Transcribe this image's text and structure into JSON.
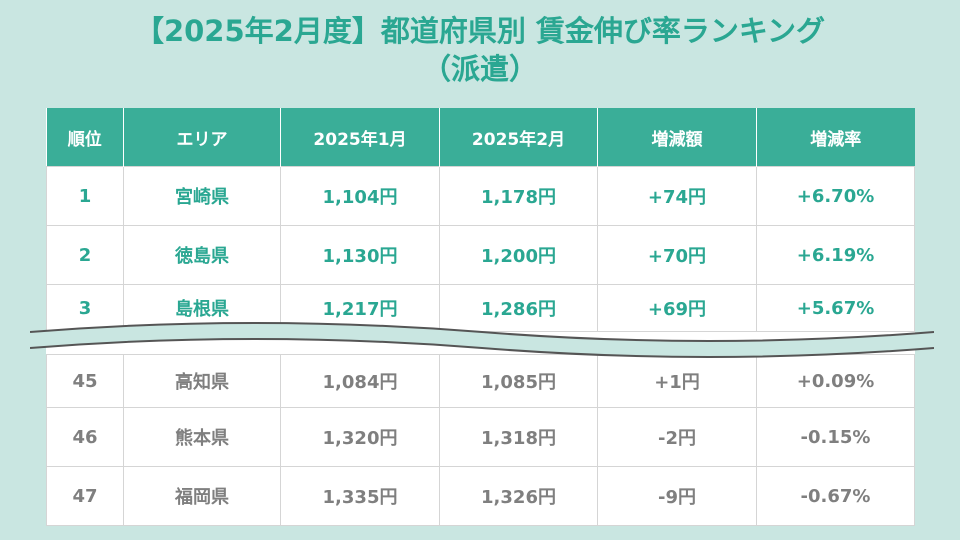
{
  "title": {
    "line1": "【2025年2月度】都道府県別 賃金伸び率ランキング",
    "line2": "（派遣）"
  },
  "table": {
    "headers": [
      "順位",
      "エリア",
      "2025年1月",
      "2025年2月",
      "増減額",
      "増減率"
    ],
    "top_rows": [
      {
        "rank": "1",
        "area": "宮崎県",
        "jan": "1,104円",
        "feb": "1,178円",
        "diff": "+74円",
        "rate": "+6.70%"
      },
      {
        "rank": "2",
        "area": "徳島県",
        "jan": "1,130円",
        "feb": "1,200円",
        "diff": "+70円",
        "rate": "+6.19%"
      },
      {
        "rank": "3",
        "area": "島根県",
        "jan": "1,217円",
        "feb": "1,286円",
        "diff": "+69円",
        "rate": "+5.67%"
      }
    ],
    "bottom_rows": [
      {
        "rank": "45",
        "area": "高知県",
        "jan": "1,084円",
        "feb": "1,085円",
        "diff": "+1円",
        "rate": "+0.09%"
      },
      {
        "rank": "46",
        "area": "熊本県",
        "jan": "1,320円",
        "feb": "1,318円",
        "diff": "-2円",
        "rate": "-0.15%"
      },
      {
        "rank": "47",
        "area": "福岡県",
        "jan": "1,335円",
        "feb": "1,326円",
        "diff": "-9円",
        "rate": "-0.67%"
      }
    ]
  },
  "colors": {
    "background": "#c9e6e1",
    "header_bg": "#3aae98",
    "accent_text": "#2aa792",
    "muted_text": "#7f7f7f"
  }
}
